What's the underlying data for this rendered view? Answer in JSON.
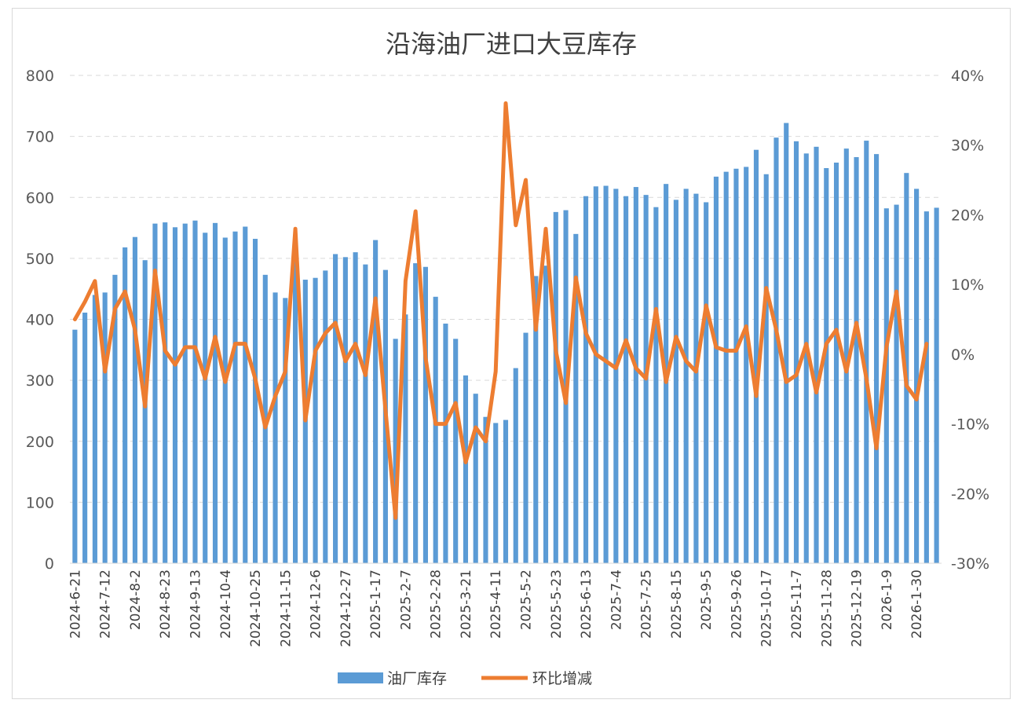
{
  "chart_data": {
    "type": "bar+line",
    "title": "沿海油厂进口大豆库存",
    "left_axis": {
      "ticks": [
        "0",
        "100",
        "200",
        "300",
        "400",
        "500",
        "600",
        "700",
        "800"
      ],
      "range": [
        0,
        800
      ]
    },
    "right_axis": {
      "ticks": [
        "-30%",
        "-20%",
        "-10%",
        "0%",
        "10%",
        "20%",
        "30%",
        "40%"
      ],
      "range": [
        -30,
        40
      ]
    },
    "x_labels": [
      "2024-6-21",
      "2024-7-12",
      "2024-8-2",
      "2024-8-23",
      "2024-9-13",
      "2024-10-4",
      "2024-10-25",
      "2024-11-15",
      "2024-12-6",
      "2024-12-27",
      "2025-1-17",
      "2025-2-7",
      "2025-2-28",
      "2025-3-21",
      "2025-4-11",
      "2025-5-2",
      "2025-5-23",
      "2025-6-13",
      "2025-7-4",
      "2025-7-25",
      "2025-8-15",
      "2025-9-5",
      "2025-9-26",
      "2025-10-17",
      "2025-11-7",
      "2025-11-28",
      "2025-12-19",
      "2026-1-9",
      "2026-1-30"
    ],
    "grid": "horizontal dashed",
    "legend_position": "bottom",
    "series": [
      {
        "name": "油厂库存",
        "type": "bar",
        "color": "#5b9bd5",
        "axis": "left",
        "values": [
          383,
          411,
          440,
          444,
          473,
          518,
          535,
          497,
          557,
          559,
          551,
          557,
          562,
          542,
          558,
          534,
          544,
          552,
          532,
          473,
          444,
          435,
          505,
          465,
          468,
          480,
          507,
          502,
          510,
          490,
          530,
          481,
          368,
          408,
          492,
          486,
          437,
          393,
          368,
          308,
          278,
          240,
          230,
          235,
          320,
          378,
          471,
          488,
          576,
          579,
          540,
          602,
          618,
          619,
          614,
          602,
          617,
          604,
          584,
          622,
          596,
          614,
          606,
          592,
          634,
          642,
          647,
          650,
          678,
          638,
          698,
          722,
          692,
          672,
          683,
          648,
          657,
          680,
          666,
          693,
          671,
          582,
          588,
          640,
          614,
          577,
          583
        ]
      },
      {
        "name": "环比增减",
        "type": "line",
        "color": "#ed7d31",
        "axis": "right",
        "values": [
          5,
          7.5,
          10.5,
          -2.5,
          6.5,
          9,
          3.5,
          -7.5,
          12,
          0.5,
          -1.5,
          1,
          1,
          -3.5,
          2.5,
          -4,
          1.5,
          1.5,
          -3.5,
          -10.5,
          -6,
          -2.5,
          18,
          -9.5,
          0.5,
          3,
          4.5,
          -1,
          1.5,
          -3,
          8,
          -8,
          -23.5,
          10.5,
          20.5,
          -0.5,
          -10,
          -10,
          -7,
          -15.5,
          -10.5,
          -12.5,
          -2.5,
          36,
          18.5,
          25,
          3.5,
          18,
          0.5,
          -7,
          11,
          3,
          0,
          -1,
          -2,
          2,
          -2,
          -3.5,
          6.5,
          -4,
          2.5,
          -1,
          -2.5,
          7,
          1,
          0.5,
          0.5,
          4,
          -6,
          9.5,
          3.5,
          -4,
          -3,
          1.5,
          -5.5,
          1.5,
          3.5,
          -2.5,
          4.5,
          -3.5,
          -13.5,
          1,
          9,
          -4.5,
          -6.5,
          1.5
        ]
      }
    ]
  }
}
